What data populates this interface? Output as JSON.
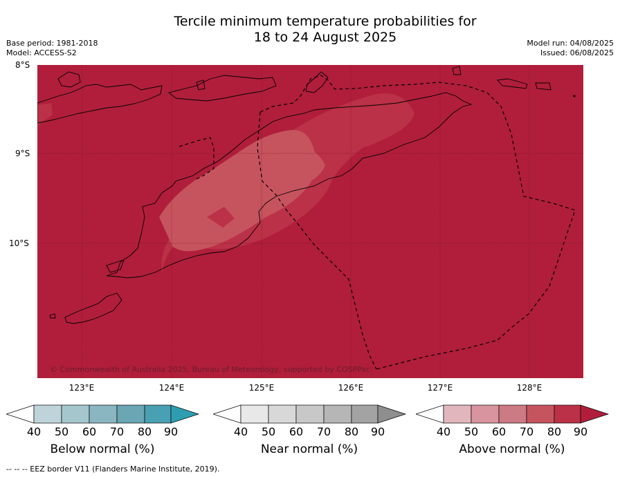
{
  "title_line1": "Tercile minimum temperature probabilities for",
  "title_line2": "18 to 24 August 2025",
  "base_period": "Base period: 1981-2018",
  "model": "Model: ACCESS-S2",
  "model_run": "Model run: 04/08/2025",
  "issued": "Issued: 06/08/2025",
  "lat_labels": [
    "8°S",
    "9°S",
    "10°S"
  ],
  "lon_labels": [
    "123°E",
    "124°E",
    "125°E",
    "126°E",
    "127°E",
    "128°E"
  ],
  "copyright": "© Commonwealth of Australia 2025, Bureau of Meteorology, supported by COSPPac",
  "colorbars": [
    {
      "label": "Below normal (%)",
      "ticks": [
        "40",
        "50",
        "60",
        "70",
        "80",
        "90"
      ],
      "colors": [
        "#bfd3da",
        "#a5c6cd",
        "#89b6c1",
        "#6aa6b4",
        "#48a0b2",
        "#2e9db0"
      ]
    },
    {
      "label": "Near normal (%)",
      "ticks": [
        "40",
        "50",
        "60",
        "70",
        "80",
        "90"
      ],
      "colors": [
        "#e8e8e8",
        "#d8d8d8",
        "#c8c8c8",
        "#b6b6b6",
        "#a3a3a3",
        "#8e8e8e"
      ]
    },
    {
      "label": "Above normal (%)",
      "ticks": [
        "40",
        "50",
        "60",
        "70",
        "80",
        "90"
      ],
      "colors": [
        "#e1b6bd",
        "#d8959f",
        "#cc7a84",
        "#c6545e",
        "#bb3147",
        "#b01e3b"
      ]
    }
  ],
  "eez_note": "--  --  -- EEZ border V11 (Flanders Marine Institute, 2019).",
  "map_colors": {
    "base": "#b01e3b",
    "level80": "#bb3147",
    "level70": "#c6545e"
  }
}
